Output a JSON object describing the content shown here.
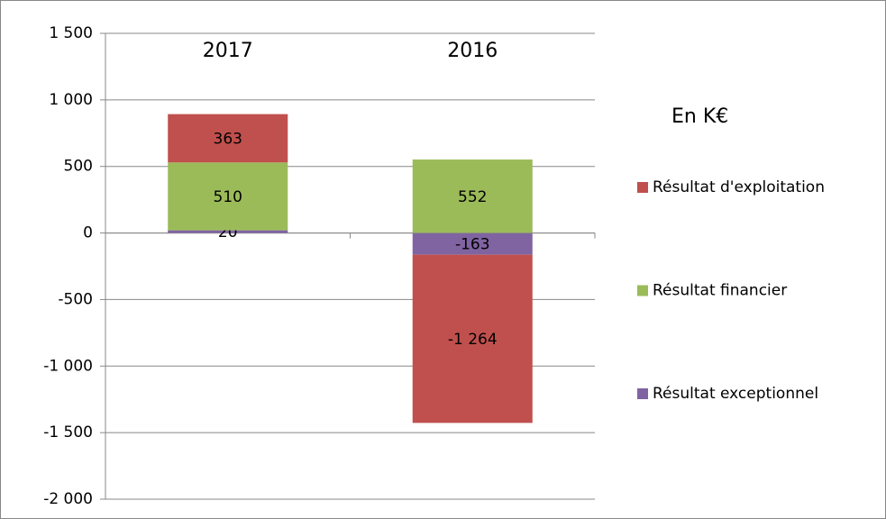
{
  "chart_data": {
    "type": "stacked_bar",
    "annotation": "En K€",
    "categories": [
      "2017",
      "2016"
    ],
    "series": [
      {
        "name": "Résultat d'exploitation",
        "color": "#c0504d",
        "values": [
          363,
          -1264
        ],
        "value_labels": [
          "363",
          "-1 264"
        ]
      },
      {
        "name": "Résultat financier",
        "color": "#9bbb59",
        "values": [
          510,
          552
        ]
      },
      {
        "name": "Résultat exceptionnel",
        "color": "#8064a2",
        "values": [
          20,
          -163
        ]
      }
    ],
    "stack_order": [
      2,
      1,
      0
    ],
    "ylim": [
      -2000,
      1500
    ],
    "yticks": [
      {
        "value": -2000,
        "label": "-2 000"
      },
      {
        "value": -1500,
        "label": "-1 500"
      },
      {
        "value": -1000,
        "label": "-1 000"
      },
      -500,
      0,
      500,
      {
        "value": 1000,
        "label": "1 000"
      },
      {
        "value": 1500,
        "label": "1 500"
      }
    ],
    "grid": true,
    "legend": "right"
  }
}
